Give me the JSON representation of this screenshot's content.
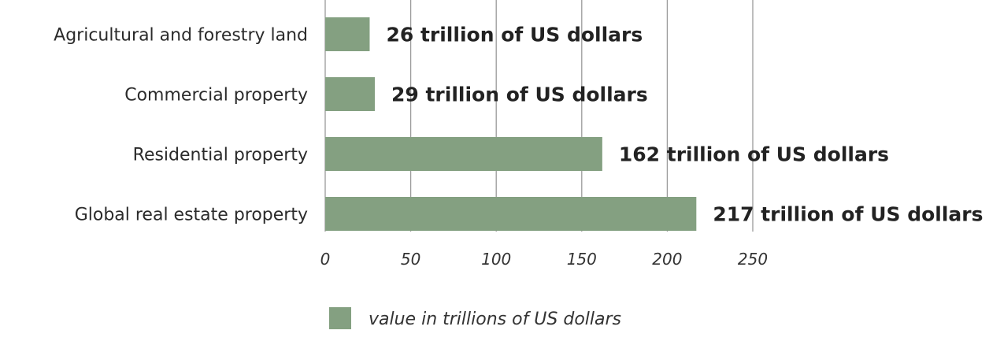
{
  "chart_data": {
    "type": "bar",
    "orientation": "horizontal",
    "categories": [
      "Agricultural and forestry land",
      "Commercial property",
      "Residential property",
      "Global real estate property"
    ],
    "values": [
      26,
      29,
      162,
      217
    ],
    "data_labels": [
      "26 trillion of US dollars",
      "29 trillion of US dollars",
      "162 trillion of US dollars",
      "217 trillion of US dollars"
    ],
    "xlim": [
      0,
      250
    ],
    "xticks": [
      0,
      50,
      100,
      150,
      200,
      250
    ],
    "grid": true,
    "legend": {
      "placement": "bottom",
      "entries": [
        "value in trillions of US dollars"
      ]
    },
    "colors": {
      "bar": "#84a081"
    }
  }
}
